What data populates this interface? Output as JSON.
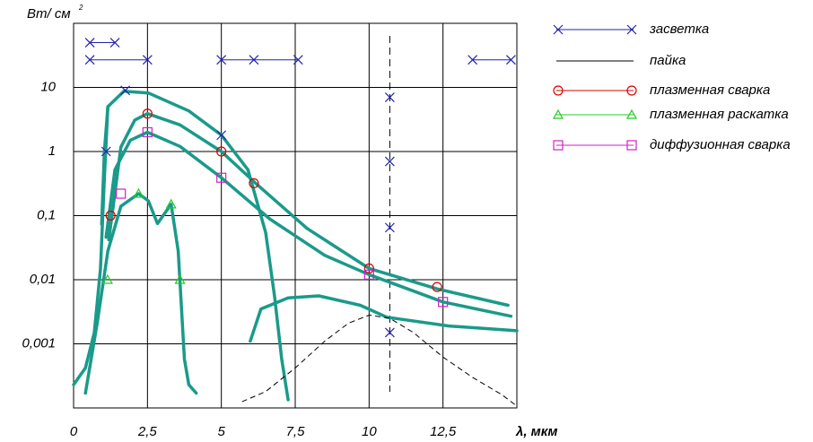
{
  "chart_data": {
    "type": "scatter",
    "ylog": true,
    "grid": true,
    "ylabel": "Вт/ см",
    "ylabel_sup": "2",
    "xlabel": "λ, мкм",
    "xlim": [
      0,
      15
    ],
    "ylim": [
      0.0001,
      100
    ],
    "xticks": [
      0,
      {
        "value": 2.5,
        "label": "2,5"
      },
      5,
      {
        "value": 7.5,
        "label": "7,5"
      },
      10,
      {
        "value": 12.5,
        "label": "12,5"
      }
    ],
    "yticks": [
      {
        "value": 0.001,
        "label": "0,001"
      },
      {
        "value": 0.01,
        "label": "0,01"
      },
      {
        "value": 0.1,
        "label": "0,1"
      },
      1,
      10
    ],
    "vline": 10.7,
    "series": [
      {
        "name": "засветка",
        "color": "#2222aa",
        "marker": "x",
        "line": true,
        "dash": false,
        "x": [
          0.55,
          1.4,
          null,
          0.55,
          2.5,
          null,
          5,
          6.1,
          7.6,
          null,
          13.5,
          14.8,
          null,
          1.1,
          null,
          1.75,
          null,
          5,
          null,
          10.7,
          null,
          10.7,
          null,
          10.7,
          null,
          10.7
        ],
        "values": [
          50,
          50,
          null,
          27,
          27,
          null,
          27,
          27,
          27,
          null,
          27,
          27,
          null,
          1,
          null,
          9,
          null,
          1.8,
          null,
          7,
          null,
          0.7,
          null,
          0.065,
          null,
          0.0015
        ]
      },
      {
        "name": "пайка",
        "color": "#000000",
        "marker": "none",
        "line": true,
        "dash": true,
        "x": [
          5.7,
          6.5,
          7.5,
          8.5,
          9.3,
          10,
          10.7,
          11.5,
          12.5,
          13.5,
          14.5,
          15
        ],
        "values": [
          0.000125,
          0.00018,
          0.00042,
          0.0011,
          0.0021,
          0.0028,
          0.0025,
          0.0015,
          0.00062,
          0.0003,
          0.00016,
          0.000107
        ]
      },
      {
        "name": "плазменная сварка",
        "color": "#dd0000",
        "marker": "circle",
        "line": false,
        "dash": false,
        "x": [
          1.25,
          2.5,
          5,
          6.1,
          10,
          12.3
        ],
        "values": [
          0.1,
          3.9,
          1,
          0.32,
          0.015,
          0.0077
        ]
      },
      {
        "name": "плазменная раскатка",
        "color": "#22cc22",
        "marker": "triangle",
        "line": false,
        "dash": false,
        "x": [
          1.15,
          2.2,
          3.3,
          3.6
        ],
        "values": [
          0.01,
          0.22,
          0.15,
          0.01
        ]
      },
      {
        "name": "диффузионная сварка",
        "color": "#cc22cc",
        "marker": "square",
        "line": false,
        "dash": false,
        "x": [
          1.6,
          2.5,
          5,
          10,
          12.5
        ],
        "values": [
          0.22,
          2.0,
          0.39,
          0.012,
          0.0045
        ]
      }
    ],
    "curves": [
      {
        "color": "#1a9a8a",
        "x": [
          0.95,
          1.04,
          1.16,
          1.7,
          2.53,
          3.9,
          5,
          5.9,
          6.5,
          6.8,
          7.04,
          7.26
        ],
        "values": [
          0.074,
          1,
          5,
          8.7,
          8.2,
          4.3,
          1.8,
          0.52,
          0.054,
          0.0056,
          0.00058,
          0.000134
        ]
      },
      {
        "color": "#1a9a8a",
        "x": [
          1.19,
          1.3,
          1.6,
          2.07,
          2.5,
          3.6,
          5,
          6.16,
          7.9,
          10,
          12.3,
          14.7
        ],
        "values": [
          0.042,
          0.1,
          1.17,
          3.1,
          3.9,
          2.6,
          1,
          0.32,
          0.063,
          0.015,
          0.0072,
          0.004
        ]
      },
      {
        "color": "#1a9a8a",
        "x": [
          1.1,
          1.4,
          1.92,
          2.5,
          3.6,
          5,
          6.65,
          8.5,
          10,
          12.5,
          14.8
        ],
        "values": [
          0.046,
          0.52,
          1.5,
          2.0,
          1.2,
          0.39,
          0.088,
          0.024,
          0.012,
          0.0045,
          0.0027
        ]
      },
      {
        "color": "#1a9a8a",
        "x": [
          0,
          0.4,
          0.7,
          0.91,
          1.04,
          1.16
        ],
        "values": [
          0.00023,
          0.00042,
          0.0015,
          0.015,
          0.38,
          5
        ]
      },
      {
        "color": "#1a9a8a",
        "x": [
          0.4,
          0.8,
          1.16,
          1.6,
          2.2,
          2.53,
          2.84,
          3.3,
          3.54,
          3.75,
          3.9,
          4.15
        ],
        "values": [
          0.00017,
          0.0021,
          0.028,
          0.14,
          0.22,
          0.17,
          0.075,
          0.15,
          0.028,
          0.00058,
          0.00023,
          0.00017
        ]
      },
      {
        "color": "#1a9a8a",
        "x": [
          5.98,
          6.34,
          7.26,
          8.3,
          9.7,
          10.6,
          12.7,
          15
        ],
        "values": [
          0.0011,
          0.0035,
          0.0052,
          0.0056,
          0.004,
          0.0026,
          0.0019,
          0.0016
        ]
      }
    ]
  }
}
